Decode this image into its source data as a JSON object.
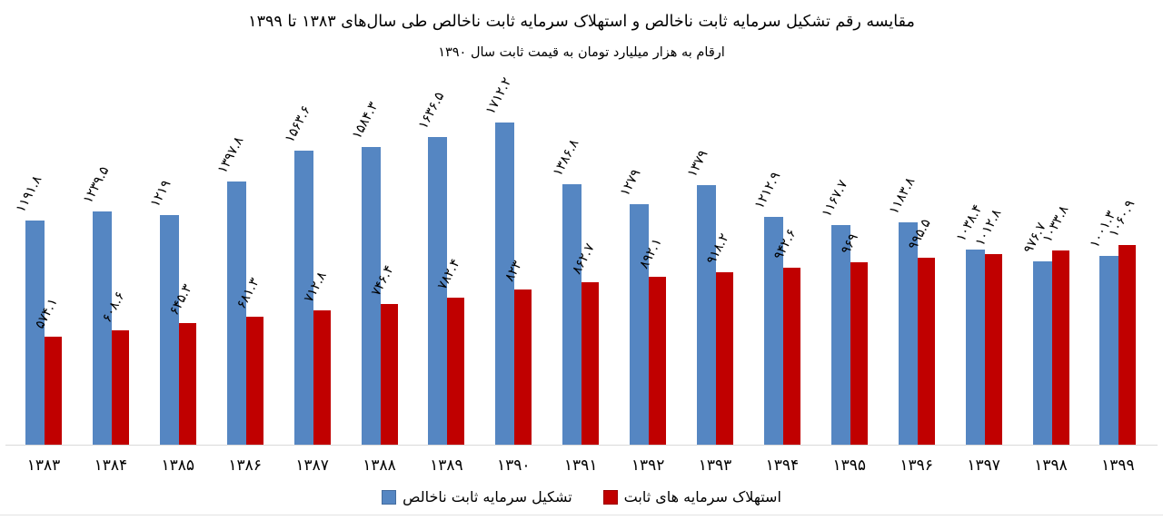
{
  "title": "مقایسه رقم تشکیل سرمایه ثابت ناخالص و استهلاک سرمایه ثابت ناخالص طی سال‌های ۱۳۸۳ تا ۱۳۹۹",
  "subtitle": "ارقام به هزار میلیارد تومان به قیمت ثابت سال ۱۳۹۰",
  "colors": {
    "formation_blue": "#5586C2",
    "depreciation_red": "#C00000",
    "axis_line": "#D9D9D9",
    "text": "#000000",
    "background": "#FFFFFF"
  },
  "chart_data": {
    "type": "bar",
    "title": "مقایسه رقم تشکیل سرمایه ثابت ناخالص و استهلاک سرمایه ثابت ناخالص طی سال‌های ۱۳۸۳ تا ۱۳۹۹",
    "subtitle": "ارقام به هزار میلیارد تومان به قیمت ثابت سال ۱۳۹۰",
    "categories": [
      "۱۳۸۳",
      "۱۳۸۴",
      "۱۳۸۵",
      "۱۳۸۶",
      "۱۳۸۷",
      "۱۳۸۸",
      "۱۳۸۹",
      "۱۳۹۰",
      "۱۳۹۱",
      "۱۳۹۲",
      "۱۳۹۳",
      "۱۳۹۴",
      "۱۳۹۵",
      "۱۳۹۶",
      "۱۳۹۷",
      "۱۳۹۸",
      "۱۳۹۹"
    ],
    "categories_numeric": [
      1383,
      1384,
      1385,
      1386,
      1387,
      1388,
      1389,
      1390,
      1391,
      1392,
      1393,
      1394,
      1395,
      1396,
      1397,
      1398,
      1399
    ],
    "series": [
      {
        "name": "تشکیل سرمایه ثابت ناخالص",
        "color": "#5586C2",
        "values": [
          1191.8,
          1239.5,
          1219,
          1397.8,
          1563.6,
          1584.3,
          1636.5,
          1712.2,
          1386.8,
          1279,
          1379,
          1212.9,
          1167.7,
          1183.8,
          1038.4,
          976.7,
          1001.3
        ],
        "labels": [
          "۱۱۹۱.۸",
          "۱۲۳۹.۵",
          "۱۲۱۹",
          "۱۳۹۷.۸",
          "۱۵۶۳.۶",
          "۱۵۸۴.۳",
          "۱۶۳۶.۵",
          "۱۷۱۲.۲",
          "۱۳۸۶.۸",
          "۱۲۷۹",
          "۱۳۷۹",
          "۱۲۱۲.۹",
          "۱۱۶۷.۷",
          "۱۱۸۳.۸",
          "۱۰۳۸.۴",
          "۹۷۶.۷",
          "۱۰۰۱.۳"
        ]
      },
      {
        "name": "استهلاک سرمایه های ثابت",
        "color": "#C00000",
        "values": [
          574.1,
          608.6,
          645.3,
          681.3,
          712.8,
          746.4,
          782.4,
          823,
          862.7,
          892.1,
          918.2,
          942.6,
          969,
          995.5,
          1012.8,
          1033.8,
          1060.9
        ],
        "labels": [
          "۵۷۴.۱",
          "۶۰۸.۶",
          "۶۴۵.۳",
          "۶۸۱.۳",
          "۷۱۲.۸",
          "۷۴۶.۴",
          "۷۸۲.۴",
          "۸۲۳",
          "۸۶۲.۷",
          "۸۹۲.۱",
          "۹۱۸.۲",
          "۹۴۲.۶",
          "۹۶۹",
          "۹۹۵.۵",
          "۱۰۱۲.۸",
          "۱۰۳۳.۸",
          "۱۰۶۰.۹"
        ]
      }
    ],
    "ylim": [
      0,
      1930
    ],
    "grid": false,
    "y_axis_visible": false,
    "legend_position": "bottom"
  },
  "legend": {
    "formation_label": "تشکیل سرمایه ثابت ناخالص",
    "depreciation_label": "استهلاک سرمایه های ثابت"
  }
}
